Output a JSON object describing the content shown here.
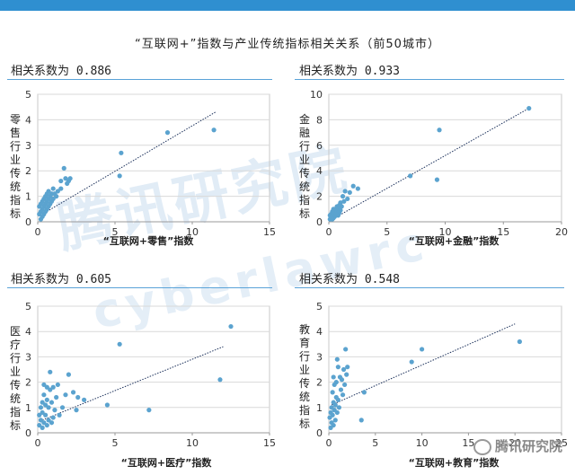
{
  "title": "“互联网+”指数与产业传统指标相关关系（前50城市）",
  "watermark": "腾讯研究院",
  "watermark2": "cyberlawrc",
  "brand": "腾讯研究院",
  "colors": {
    "accent": "#2f8fd0",
    "point": "#5ba3cf",
    "trend": "#1a2f5a"
  },
  "panels": [
    {
      "coef_label": "相关系数为",
      "coef_value": "0.886"
    },
    {
      "coef_label": "相关系数为",
      "coef_value": "0.933"
    },
    {
      "coef_label": "相关系数为",
      "coef_value": "0.605"
    },
    {
      "coef_label": "相关系数为",
      "coef_value": "0.548"
    }
  ],
  "chart_data": [
    {
      "type": "scatter",
      "xlabel": "“互联网+零售”指数",
      "ylabel": "零售行业传统指标",
      "xlim": [
        0,
        15
      ],
      "ylim": [
        0,
        5
      ],
      "xticks": [
        0,
        5,
        10,
        15
      ],
      "yticks": [
        0,
        1,
        2,
        3,
        4,
        5
      ],
      "trendline": [
        [
          0.3,
          0.3
        ],
        [
          11.5,
          4.3
        ]
      ],
      "points": [
        [
          11.4,
          3.6
        ],
        [
          8.4,
          3.5
        ],
        [
          5.4,
          2.7
        ],
        [
          5.3,
          1.8
        ],
        [
          2.1,
          1.7
        ],
        [
          2.0,
          1.6
        ],
        [
          1.9,
          1.5
        ],
        [
          1.8,
          1.7
        ],
        [
          1.7,
          2.1
        ],
        [
          1.5,
          1.6
        ],
        [
          1.5,
          1.3
        ],
        [
          1.3,
          1.2
        ],
        [
          1.2,
          1.0
        ],
        [
          1.1,
          1.1
        ],
        [
          1.0,
          1.3
        ],
        [
          1.0,
          0.9
        ],
        [
          0.9,
          1.1
        ],
        [
          0.9,
          0.8
        ],
        [
          0.8,
          1.0
        ],
        [
          0.8,
          0.7
        ],
        [
          0.7,
          1.2
        ],
        [
          0.7,
          0.9
        ],
        [
          0.7,
          0.6
        ],
        [
          0.6,
          1.1
        ],
        [
          0.6,
          0.8
        ],
        [
          0.6,
          0.5
        ],
        [
          0.5,
          1.0
        ],
        [
          0.5,
          0.7
        ],
        [
          0.5,
          0.4
        ],
        [
          0.4,
          0.9
        ],
        [
          0.4,
          0.6
        ],
        [
          0.4,
          0.3
        ],
        [
          0.3,
          0.8
        ],
        [
          0.3,
          0.5
        ],
        [
          0.3,
          0.2
        ],
        [
          0.2,
          0.7
        ],
        [
          0.2,
          0.4
        ],
        [
          0.2,
          0.1
        ],
        [
          0.1,
          0.6
        ],
        [
          0.1,
          0.3
        ]
      ]
    },
    {
      "type": "scatter",
      "xlabel": "“互联网+金融”指数",
      "ylabel": "金融行业传统指标",
      "xlim": [
        0,
        20
      ],
      "ylim": [
        0,
        10
      ],
      "xticks": [
        0,
        5,
        10,
        15,
        20
      ],
      "yticks": [
        0,
        2,
        4,
        6,
        8,
        10
      ],
      "trendline": [
        [
          0.3,
          0.2
        ],
        [
          17.0,
          8.8
        ]
      ],
      "points": [
        [
          17.2,
          8.9
        ],
        [
          9.5,
          7.2
        ],
        [
          9.3,
          3.3
        ],
        [
          7.0,
          3.6
        ],
        [
          2.5,
          2.6
        ],
        [
          2.1,
          2.8
        ],
        [
          1.8,
          2.3
        ],
        [
          1.6,
          1.8
        ],
        [
          1.4,
          2.4
        ],
        [
          1.3,
          1.6
        ],
        [
          1.2,
          2.0
        ],
        [
          1.1,
          1.2
        ],
        [
          1.0,
          1.5
        ],
        [
          1.0,
          0.9
        ],
        [
          0.9,
          1.3
        ],
        [
          0.9,
          0.7
        ],
        [
          0.8,
          1.1
        ],
        [
          0.8,
          0.5
        ],
        [
          0.7,
          1.2
        ],
        [
          0.7,
          0.8
        ],
        [
          0.6,
          1.0
        ],
        [
          0.6,
          0.6
        ],
        [
          0.5,
          0.9
        ],
        [
          0.5,
          0.4
        ],
        [
          0.4,
          1.0
        ],
        [
          0.4,
          0.7
        ],
        [
          0.4,
          0.3
        ],
        [
          0.3,
          0.8
        ],
        [
          0.3,
          0.5
        ],
        [
          0.3,
          0.2
        ],
        [
          0.2,
          0.6
        ],
        [
          0.2,
          0.3
        ],
        [
          0.1,
          0.5
        ],
        [
          0.1,
          0.2
        ]
      ]
    },
    {
      "type": "scatter",
      "xlabel": "“互联网+医疗”指数",
      "ylabel": "医疗行业传统指标",
      "xlim": [
        0,
        15
      ],
      "ylim": [
        0,
        5
      ],
      "xticks": [
        0,
        5,
        10,
        15
      ],
      "yticks": [
        0,
        1,
        2,
        3,
        4,
        5
      ],
      "trendline": [
        [
          0.3,
          0.5
        ],
        [
          12.0,
          3.4
        ]
      ],
      "points": [
        [
          12.5,
          4.2
        ],
        [
          11.8,
          2.1
        ],
        [
          5.3,
          3.5
        ],
        [
          7.2,
          0.9
        ],
        [
          4.5,
          1.1
        ],
        [
          3.0,
          1.3
        ],
        [
          2.6,
          1.4
        ],
        [
          2.5,
          0.9
        ],
        [
          2.3,
          1.6
        ],
        [
          2.0,
          2.3
        ],
        [
          1.8,
          1.5
        ],
        [
          1.6,
          1.0
        ],
        [
          1.4,
          0.7
        ],
        [
          1.3,
          1.9
        ],
        [
          1.2,
          1.4
        ],
        [
          1.1,
          0.9
        ],
        [
          1.0,
          1.8
        ],
        [
          1.0,
          0.6
        ],
        [
          0.9,
          1.2
        ],
        [
          0.9,
          0.4
        ],
        [
          0.8,
          2.4
        ],
        [
          0.8,
          1.7
        ],
        [
          0.7,
          1.0
        ],
        [
          0.7,
          0.5
        ],
        [
          0.6,
          1.8
        ],
        [
          0.6,
          1.3
        ],
        [
          0.6,
          0.3
        ],
        [
          0.5,
          1.1
        ],
        [
          0.5,
          0.7
        ],
        [
          0.4,
          1.9
        ],
        [
          0.4,
          1.5
        ],
        [
          0.4,
          0.4
        ],
        [
          0.3,
          1.2
        ],
        [
          0.3,
          0.8
        ],
        [
          0.3,
          0.2
        ],
        [
          0.2,
          1.0
        ],
        [
          0.2,
          0.5
        ],
        [
          0.1,
          0.7
        ],
        [
          0.1,
          0.3
        ]
      ]
    },
    {
      "type": "scatter",
      "xlabel": "“互联网+教育”指数",
      "ylabel": "教育行业传统指标",
      "xlim": [
        0,
        25
      ],
      "ylim": [
        0,
        5
      ],
      "xticks": [
        0,
        5,
        10,
        15,
        20,
        25
      ],
      "yticks": [
        0,
        1,
        2,
        3,
        4,
        5
      ],
      "trendline": [
        [
          0.3,
          1.1
        ],
        [
          20.0,
          4.3
        ]
      ],
      "points": [
        [
          20.5,
          3.6
        ],
        [
          10.0,
          3.3
        ],
        [
          8.9,
          2.8
        ],
        [
          3.8,
          1.6
        ],
        [
          3.5,
          0.5
        ],
        [
          2.0,
          2.6
        ],
        [
          1.9,
          2.3
        ],
        [
          1.8,
          3.3
        ],
        [
          1.7,
          1.9
        ],
        [
          1.6,
          2.5
        ],
        [
          1.5,
          1.5
        ],
        [
          1.4,
          2.1
        ],
        [
          1.3,
          1.7
        ],
        [
          1.2,
          2.2
        ],
        [
          1.1,
          1.0
        ],
        [
          1.0,
          2.6
        ],
        [
          1.0,
          1.3
        ],
        [
          0.9,
          2.9
        ],
        [
          0.9,
          0.8
        ],
        [
          0.8,
          2.0
        ],
        [
          0.8,
          1.4
        ],
        [
          0.7,
          1.1
        ],
        [
          0.7,
          0.5
        ],
        [
          0.6,
          1.9
        ],
        [
          0.6,
          0.9
        ],
        [
          0.5,
          2.2
        ],
        [
          0.5,
          1.2
        ],
        [
          0.5,
          0.3
        ],
        [
          0.4,
          1.6
        ],
        [
          0.4,
          0.7
        ],
        [
          0.3,
          1.0
        ],
        [
          0.3,
          0.4
        ],
        [
          0.2,
          0.8
        ],
        [
          0.2,
          0.2
        ],
        [
          0.1,
          0.6
        ]
      ]
    }
  ]
}
